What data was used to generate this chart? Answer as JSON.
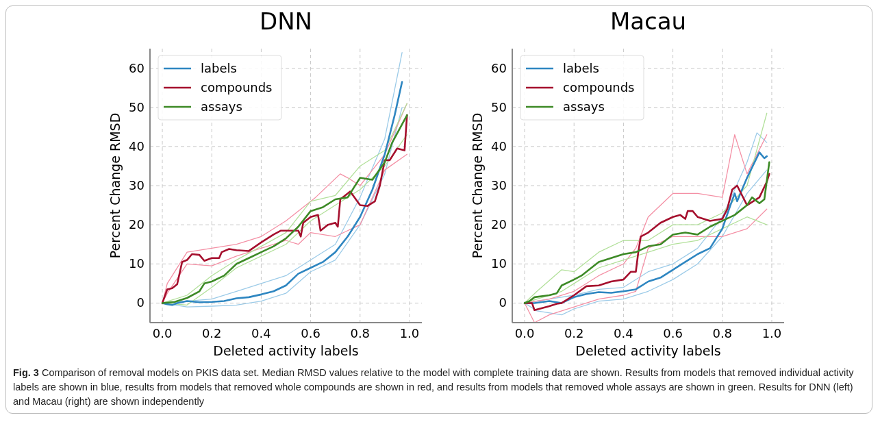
{
  "chart_data": [
    {
      "type": "line",
      "title": "DNN",
      "xlabel": "Deleted activity labels",
      "ylabel": "Percent Change RMSD",
      "xlim": [
        -0.05,
        1.05
      ],
      "ylim": [
        -5,
        65
      ],
      "xticks": [
        {
          "value": 0,
          "label": "0.0"
        },
        {
          "value": 0.2,
          "label": "0.2"
        },
        {
          "value": 0.4,
          "label": "0.4"
        },
        {
          "value": 0.6,
          "label": "0.6"
        },
        {
          "value": 0.8,
          "label": "0.8"
        },
        {
          "value": 1,
          "label": "1.0"
        }
      ],
      "yticks": [
        0,
        10,
        20,
        30,
        40,
        50,
        60
      ],
      "grid": true,
      "legend": "top left",
      "annotations": [
        "Fig. 3",
        "Comparison of removal models on PKIS data set. Median RMSD values relative to the model with complete training data are shown. Results from models that removed individual activity labels are shown in blue, results from models that removed whole compounds are shown in red, and results from models that removed whole assays are shown in green. Results for DNN (left) and Macau (right) are shown independently"
      ],
      "series": [
        {
          "color": "#9ccbe8",
          "x": [
            0,
            0.1,
            0.2,
            0.3,
            0.4,
            0.5,
            0.6,
            0.7,
            0.8,
            0.9,
            0.97
          ],
          "values": [
            0,
            0.5,
            1,
            3,
            5,
            7,
            11,
            15,
            27,
            42,
            64
          ]
        },
        {
          "color": "#9ccbe8",
          "x": [
            0,
            0.1,
            0.2,
            0.3,
            0.4,
            0.5,
            0.6,
            0.7,
            0.8,
            0.9,
            0.97
          ],
          "values": [
            0,
            -1,
            -0.8,
            -0.5,
            0.5,
            2.5,
            8,
            11,
            20,
            33,
            50
          ]
        },
        {
          "color": "#f490a5",
          "x": [
            0,
            0.02,
            0.1,
            0.2,
            0.3,
            0.4,
            0.5,
            0.62,
            0.72,
            0.75,
            0.8,
            0.9,
            0.99
          ],
          "values": [
            0,
            5,
            13,
            14,
            15,
            17,
            21,
            27,
            33,
            32,
            30,
            38,
            51
          ]
        },
        {
          "color": "#f490a5",
          "x": [
            0,
            0.02,
            0.1,
            0.2,
            0.3,
            0.4,
            0.5,
            0.55,
            0.6,
            0.7,
            0.8,
            0.9,
            0.99
          ],
          "values": [
            0,
            2.5,
            10,
            9.5,
            12,
            14,
            16,
            15,
            18,
            17,
            20,
            34,
            38
          ]
        },
        {
          "color": "#b2e09a",
          "x": [
            0,
            0.1,
            0.2,
            0.3,
            0.4,
            0.5,
            0.6,
            0.7,
            0.8,
            0.9,
            0.99
          ],
          "values": [
            0,
            2,
            7,
            11,
            14.5,
            18,
            26,
            27.5,
            35,
            39,
            51
          ]
        },
        {
          "color": "#b2e09a",
          "x": [
            0,
            0.1,
            0.2,
            0.3,
            0.4,
            0.5,
            0.6,
            0.7,
            0.8,
            0.9,
            0.99
          ],
          "values": [
            0,
            -0.5,
            4,
            9,
            12,
            15,
            21,
            25,
            29,
            35,
            43
          ]
        },
        {
          "name": "labels",
          "color": "#2e86c1",
          "x": [
            0,
            0.02,
            0.04,
            0.06,
            0.1,
            0.15,
            0.2,
            0.25,
            0.3,
            0.35,
            0.4,
            0.45,
            0.5,
            0.55,
            0.6,
            0.65,
            0.7,
            0.75,
            0.8,
            0.85,
            0.9,
            0.94,
            0.97
          ],
          "values": [
            0,
            -0.3,
            -0.5,
            0,
            0.5,
            0.2,
            0.3,
            0.5,
            1.2,
            1.5,
            2.2,
            3,
            4.5,
            7.5,
            9,
            10.5,
            13,
            17,
            22,
            29,
            38,
            48,
            56.5
          ]
        },
        {
          "name": "compounds",
          "color": "#a50f2d",
          "x": [
            0,
            0.02,
            0.04,
            0.06,
            0.08,
            0.1,
            0.12,
            0.15,
            0.17,
            0.2,
            0.23,
            0.24,
            0.27,
            0.3,
            0.35,
            0.4,
            0.45,
            0.48,
            0.52,
            0.55,
            0.56,
            0.57,
            0.6,
            0.63,
            0.64,
            0.67,
            0.7,
            0.71,
            0.72,
            0.76,
            0.8,
            0.83,
            0.86,
            0.88,
            0.9,
            0.92,
            0.95,
            0.98,
            0.99
          ],
          "values": [
            0,
            3.5,
            3.8,
            4.8,
            10.5,
            11,
            12.5,
            12.3,
            10.8,
            11.5,
            11.5,
            13,
            13.8,
            13.5,
            13.3,
            15.5,
            17.5,
            18.5,
            18.5,
            18.5,
            17,
            20.5,
            22,
            22.5,
            18.5,
            20,
            20.5,
            19.5,
            26.5,
            28.5,
            25,
            24.8,
            26,
            30,
            36.5,
            36.5,
            39.5,
            39,
            48
          ]
        },
        {
          "name": "assays",
          "color": "#3d8a26",
          "x": [
            0,
            0.05,
            0.1,
            0.15,
            0.17,
            0.2,
            0.25,
            0.3,
            0.35,
            0.4,
            0.45,
            0.5,
            0.55,
            0.6,
            0.65,
            0.7,
            0.75,
            0.8,
            0.85,
            0.9,
            0.93,
            0.99
          ],
          "values": [
            0,
            0.3,
            1.3,
            3,
            5,
            5.5,
            7,
            10,
            11.5,
            13,
            14.5,
            16.5,
            19.5,
            23.5,
            24.5,
            26.5,
            27,
            32,
            31.5,
            36,
            41,
            48
          ]
        }
      ]
    },
    {
      "type": "line",
      "title": "Macau",
      "xlabel": "Deleted activity labels",
      "ylabel": "Percent Change RMSD",
      "xlim": [
        -0.05,
        1.05
      ],
      "ylim": [
        -5,
        65
      ],
      "xticks": [
        {
          "value": 0,
          "label": "0.0"
        },
        {
          "value": 0.2,
          "label": "0.2"
        },
        {
          "value": 0.4,
          "label": "0.4"
        },
        {
          "value": 0.6,
          "label": "0.6"
        },
        {
          "value": 0.8,
          "label": "0.8"
        },
        {
          "value": 1,
          "label": "1.0"
        }
      ],
      "yticks": [
        0,
        10,
        20,
        30,
        40,
        50,
        60
      ],
      "grid": true,
      "legend": "top left",
      "series": [
        {
          "color": "#9ccbe8",
          "x": [
            0,
            0.1,
            0.2,
            0.3,
            0.4,
            0.5,
            0.6,
            0.7,
            0.8,
            0.9,
            0.94,
            0.98
          ],
          "values": [
            0,
            1,
            2,
            3.5,
            4,
            8,
            10,
            14,
            22,
            36,
            43.5,
            41
          ]
        },
        {
          "color": "#9ccbe8",
          "x": [
            0,
            0.05,
            0.15,
            0.2,
            0.3,
            0.4,
            0.5,
            0.6,
            0.7,
            0.8,
            0.9,
            0.98
          ],
          "values": [
            0,
            -2,
            -3,
            -1.5,
            0.5,
            1,
            3,
            6,
            10,
            17,
            28,
            34
          ]
        },
        {
          "color": "#f490a5",
          "x": [
            0,
            0.1,
            0.2,
            0.3,
            0.4,
            0.45,
            0.5,
            0.6,
            0.7,
            0.8,
            0.85,
            0.9,
            0.98
          ],
          "values": [
            0,
            1,
            3,
            7,
            10,
            14,
            22,
            28,
            28,
            27,
            43,
            33,
            43
          ]
        },
        {
          "color": "#f490a5",
          "x": [
            0,
            0.04,
            0.1,
            0.2,
            0.3,
            0.4,
            0.45,
            0.5,
            0.6,
            0.7,
            0.8,
            0.9,
            0.98
          ],
          "values": [
            0,
            -5,
            -3,
            -1,
            1,
            2,
            3,
            14,
            17,
            17,
            17,
            19,
            24
          ]
        },
        {
          "color": "#b2e09a",
          "x": [
            0,
            0.05,
            0.15,
            0.2,
            0.3,
            0.4,
            0.5,
            0.6,
            0.7,
            0.8,
            0.9,
            0.98
          ],
          "values": [
            0,
            3,
            8.5,
            8,
            13,
            16,
            16,
            20,
            20,
            23,
            30,
            48.5
          ]
        },
        {
          "color": "#b2e09a",
          "x": [
            0,
            0.05,
            0.15,
            0.2,
            0.3,
            0.4,
            0.5,
            0.6,
            0.7,
            0.8,
            0.9,
            0.98
          ],
          "values": [
            0,
            1,
            3,
            5,
            9,
            11,
            13,
            15,
            16,
            19,
            22,
            20
          ]
        },
        {
          "name": "labels",
          "color": "#2e86c1",
          "x": [
            0,
            0.04,
            0.1,
            0.15,
            0.2,
            0.25,
            0.3,
            0.35,
            0.4,
            0.45,
            0.5,
            0.55,
            0.6,
            0.65,
            0.7,
            0.75,
            0.8,
            0.83,
            0.85,
            0.86,
            0.9,
            0.95,
            0.97,
            0.98
          ],
          "values": [
            0,
            0,
            0.5,
            0,
            1.5,
            2.3,
            2.8,
            2.6,
            3,
            3.5,
            5.5,
            6.5,
            8.5,
            10.5,
            12.5,
            14,
            19,
            24.5,
            28,
            26,
            32,
            38.5,
            37,
            37.5
          ]
        },
        {
          "name": "compounds",
          "color": "#a50f2d",
          "x": [
            0,
            0.03,
            0.04,
            0.1,
            0.13,
            0.15,
            0.2,
            0.25,
            0.3,
            0.35,
            0.4,
            0.43,
            0.45,
            0.46,
            0.47,
            0.5,
            0.55,
            0.6,
            0.63,
            0.65,
            0.66,
            0.68,
            0.7,
            0.75,
            0.8,
            0.82,
            0.84,
            0.86,
            0.9,
            0.95,
            0.98,
            0.99
          ],
          "values": [
            0,
            0,
            -1.8,
            -0.8,
            -0.2,
            0,
            2,
            4.3,
            4.5,
            5.5,
            6,
            8,
            8,
            13,
            17,
            18,
            20.5,
            22,
            22.5,
            21.5,
            23.5,
            23.5,
            22,
            21,
            21.5,
            24,
            29,
            30,
            25,
            27,
            31,
            33
          ]
        },
        {
          "name": "assays",
          "color": "#3d8a26",
          "x": [
            0,
            0.02,
            0.04,
            0.1,
            0.13,
            0.15,
            0.2,
            0.23,
            0.25,
            0.3,
            0.35,
            0.4,
            0.45,
            0.5,
            0.55,
            0.6,
            0.65,
            0.7,
            0.75,
            0.8,
            0.85,
            0.9,
            0.92,
            0.95,
            0.97,
            0.99
          ],
          "values": [
            0,
            0.5,
            1.5,
            2,
            2.5,
            4.5,
            6,
            7,
            8,
            10.5,
            11.5,
            12.5,
            13,
            14.5,
            15,
            17.5,
            18,
            17.5,
            19.5,
            21,
            22.5,
            25,
            27,
            25.5,
            26.5,
            36
          ]
        }
      ]
    }
  ]
}
